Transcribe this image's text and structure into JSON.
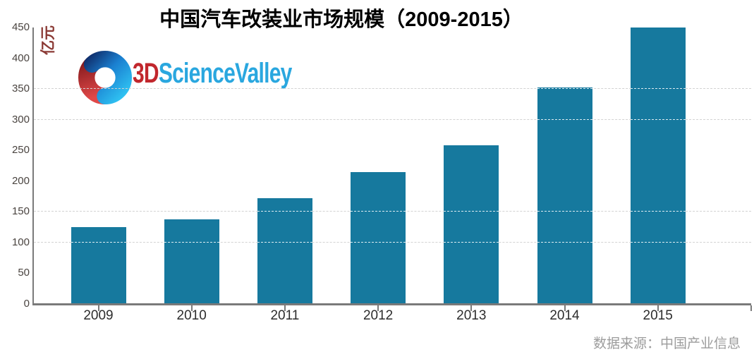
{
  "page": {
    "background": "#ffffff"
  },
  "title": "中国汽车改装业市场规模（2009-2015）",
  "watermark": {
    "icon": "swirl-logo-icon",
    "brand_3d": "3D",
    "brand_rest": "ScienceValley",
    "color_3d": "#c1272d",
    "color_rest": "#2aa7df"
  },
  "source_note": "数据来源：中国产业信息",
  "chart_data": {
    "type": "bar",
    "title": "中国汽车改装业市场规模（2009-2015）",
    "categories": [
      "2009",
      "2010",
      "2011",
      "2012",
      "2013",
      "2014",
      "2015"
    ],
    "values": [
      125,
      138,
      172,
      215,
      258,
      352,
      450
    ],
    "xlabel": "",
    "ylabel": "亿元",
    "ylim": [
      0,
      450
    ],
    "y_ticks": [
      450,
      400,
      350,
      300,
      250,
      200,
      150,
      100,
      50,
      0
    ],
    "gridlines_at": [
      350,
      300,
      150,
      100
    ],
    "grid": "dashed horizontal lines only at 100, 150, 300, 350",
    "legend": "none",
    "bar_color": "#16799e",
    "axis_color": "#7a7a7a",
    "y_tick_label_color": "#4a4440",
    "x_tick_label_color": "#2d2d2d",
    "ylabel_color": "#8b3a35"
  }
}
